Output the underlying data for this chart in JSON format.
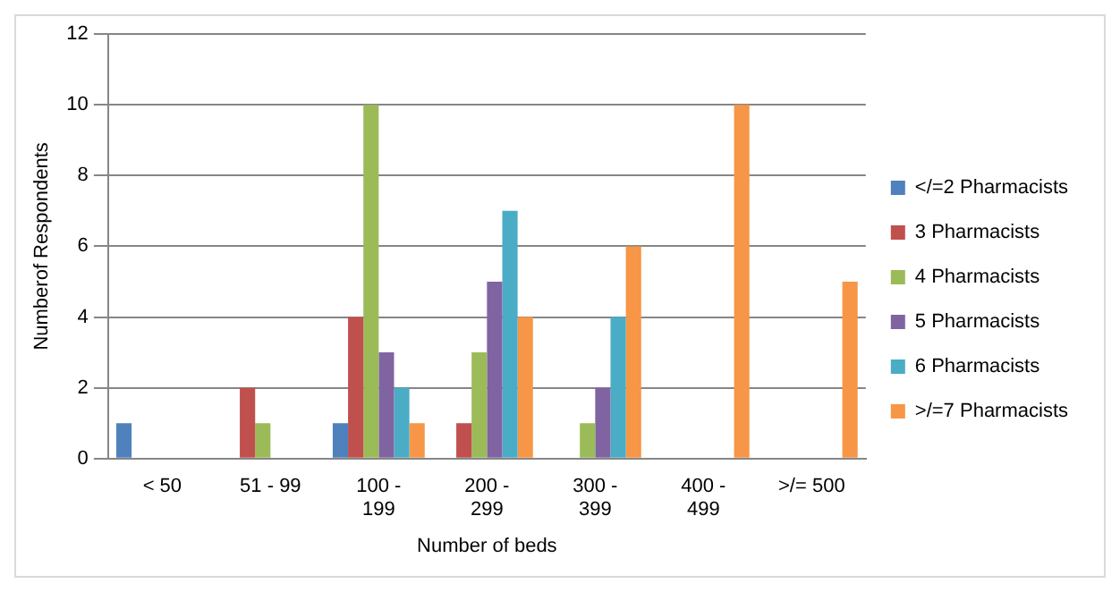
{
  "chart_data": {
    "type": "bar",
    "xlabel": "Number of beds",
    "ylabel": "Numberof Respondents",
    "categories": [
      "< 50",
      "51 - 99",
      "100 - 199",
      "200 - 299",
      "300 - 399",
      "400 - 499",
      ">/= 500"
    ],
    "series": [
      {
        "name": "</=2 Pharmacists",
        "color": "#4f81bd",
        "values": [
          1,
          0,
          1,
          0,
          0,
          0,
          0
        ]
      },
      {
        "name": "3 Pharmacists",
        "color": "#c0504d",
        "values": [
          0,
          2,
          4,
          1,
          0,
          0,
          0
        ]
      },
      {
        "name": "4 Pharmacists",
        "color": "#9bbb59",
        "values": [
          0,
          1,
          10,
          3,
          1,
          0,
          0
        ]
      },
      {
        "name": "5 Pharmacists",
        "color": "#8064a2",
        "values": [
          0,
          0,
          3,
          5,
          2,
          0,
          0
        ]
      },
      {
        "name": "6 Pharmacists",
        "color": "#4bacc6",
        "values": [
          0,
          0,
          2,
          7,
          4,
          0,
          0
        ]
      },
      {
        "name": ">/=7 Pharmacists",
        "color": "#f79646",
        "values": [
          0,
          0,
          1,
          4,
          6,
          10,
          5
        ]
      }
    ],
    "ylim": [
      0,
      12
    ],
    "yticks": [
      0,
      2,
      4,
      6,
      8,
      10,
      12
    ],
    "grid": "y",
    "legend": "right"
  }
}
